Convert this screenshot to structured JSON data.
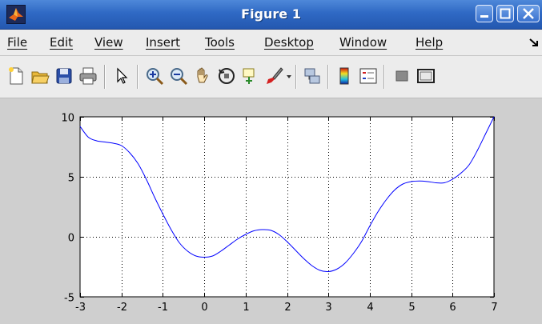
{
  "window": {
    "title": "Figure 1"
  },
  "menu": {
    "items": [
      {
        "label": "File"
      },
      {
        "label": "Edit"
      },
      {
        "label": "View"
      },
      {
        "label": "Insert"
      },
      {
        "label": "Tools"
      },
      {
        "label": "Desktop"
      },
      {
        "label": "Window"
      },
      {
        "label": "Help"
      }
    ]
  },
  "toolbar": {
    "icons": [
      "new-figure-icon",
      "open-file-icon",
      "save-icon",
      "print-icon",
      "edit-plot-arrow-icon",
      "zoom-in-icon",
      "zoom-out-icon",
      "pan-hand-icon",
      "rotate-3d-icon",
      "data-cursor-icon",
      "brush-icon",
      "link-plot-icon",
      "colorbar-icon",
      "legend-icon",
      "hide-plot-tools-icon",
      "show-plot-tools-icon"
    ]
  },
  "colors": {
    "line": "#0000ff",
    "titlebar": "#2f69c4",
    "axes_bg": "#ffffff",
    "figure_bg": "#cfcfcf"
  },
  "chart_data": {
    "type": "line",
    "title": "",
    "xlabel": "",
    "ylabel": "",
    "xlim": [
      -3,
      7
    ],
    "ylim": [
      -5,
      10
    ],
    "grid": true,
    "x_ticks": [
      -3,
      -2,
      -1,
      0,
      1,
      2,
      3,
      4,
      5,
      6,
      7
    ],
    "y_ticks": [
      -5,
      0,
      5,
      10
    ],
    "series": [
      {
        "color": "#0000ff",
        "x": [
          -3.0,
          -2.8,
          -2.6,
          -2.4,
          -2.2,
          -2.0,
          -1.8,
          -1.6,
          -1.4,
          -1.2,
          -1.0,
          -0.8,
          -0.6,
          -0.4,
          -0.2,
          0.0,
          0.2,
          0.4,
          0.6,
          0.8,
          1.0,
          1.2,
          1.4,
          1.6,
          1.8,
          2.0,
          2.2,
          2.4,
          2.6,
          2.8,
          3.0,
          3.2,
          3.4,
          3.6,
          3.8,
          4.0,
          4.2,
          4.4,
          4.6,
          4.8,
          5.0,
          5.2,
          5.4,
          5.6,
          5.8,
          6.0,
          6.2,
          6.4,
          6.6,
          6.8,
          7.0
        ],
        "y": [
          9.2,
          8.3,
          8.0,
          7.9,
          7.8,
          7.6,
          7.0,
          6.1,
          4.8,
          3.3,
          1.9,
          0.6,
          -0.5,
          -1.2,
          -1.6,
          -1.7,
          -1.6,
          -1.2,
          -0.7,
          -0.2,
          0.2,
          0.5,
          0.6,
          0.55,
          0.2,
          -0.4,
          -1.1,
          -1.8,
          -2.4,
          -2.8,
          -2.9,
          -2.7,
          -2.2,
          -1.4,
          -0.4,
          0.9,
          2.1,
          3.1,
          3.9,
          4.4,
          4.6,
          4.65,
          4.6,
          4.5,
          4.5,
          4.8,
          5.3,
          6.0,
          7.2,
          8.6,
          10.0
        ]
      }
    ]
  }
}
